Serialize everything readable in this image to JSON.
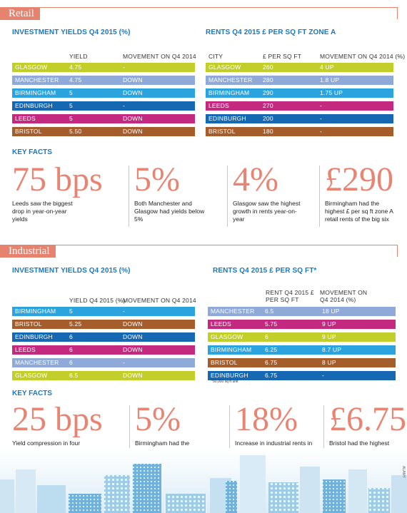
{
  "retail": {
    "section_label": "Retail",
    "yields": {
      "title": "INVESTMENT YIELDS Q4 2015 (%)",
      "headers": [
        "YIELD",
        "MOVEMENT ON Q4 2014"
      ],
      "rows": [
        {
          "city": "GLASGOW",
          "yield": "4.75",
          "movement": "-",
          "color": "#c2cf2b"
        },
        {
          "city": "MANCHESTER",
          "yield": "4.75",
          "movement": "DOWN",
          "color": "#8fa9d8"
        },
        {
          "city": "BIRMINGHAM",
          "yield": "5",
          "movement": "DOWN",
          "color": "#2aa3de"
        },
        {
          "city": "EDINBURGH",
          "yield": "5",
          "movement": "-",
          "color": "#1668b3"
        },
        {
          "city": "LEEDS",
          "yield": "5",
          "movement": "DOWN",
          "color": "#c32a7f"
        },
        {
          "city": "BRISTOL",
          "yield": "5.50",
          "movement": "DOWN",
          "color": "#a55d2c"
        }
      ]
    },
    "rents": {
      "title": "RENTS Q4 2015 £ PER SQ FT ZONE A",
      "headers": [
        "CITY",
        "£ PER SQ FT",
        "MOVEMENT ON Q4 2014 (%)"
      ],
      "rows": [
        {
          "city": "GLASGOW",
          "rent": "260",
          "movement": "4 UP",
          "color": "#c2cf2b"
        },
        {
          "city": "MANCHESTER",
          "rent": "280",
          "movement": "1.8 UP",
          "color": "#8fa9d8"
        },
        {
          "city": "BIRMINGHAM",
          "rent": "290",
          "movement": "1.75 UP",
          "color": "#2aa3de"
        },
        {
          "city": "LEEDS",
          "rent": "270",
          "movement": "-",
          "color": "#c32a7f"
        },
        {
          "city": "EDINBURGH",
          "rent": "200",
          "movement": "-",
          "color": "#1668b3"
        },
        {
          "city": "BRISTOL",
          "rent": "180",
          "movement": "-",
          "color": "#a55d2c"
        }
      ]
    },
    "key_facts_title": "KEY FACTS",
    "facts": [
      {
        "big": "75 bps",
        "text": "Leeds saw the biggest drop in year-on-year yields"
      },
      {
        "big": "5%",
        "text": "Both Manchester and Glasgow had yields below 5%"
      },
      {
        "big": "4%",
        "text": "Glasgow saw the highest growth in rents year-on-year"
      },
      {
        "big": "£290",
        "text": "Birmingham had the highest £ per sq ft zone A retail rents of the big six"
      }
    ]
  },
  "industrial": {
    "section_label": "Industrial",
    "yields": {
      "title": "INVESTMENT YIELDS Q4 2015 (%)",
      "headers": [
        "YIELD Q4 2015 (%)",
        "MOVEMENT ON Q4 2014"
      ],
      "rows": [
        {
          "city": "BIRMINGHAM",
          "yield": "5",
          "movement": "-",
          "color": "#2aa3de"
        },
        {
          "city": "BRISTOL",
          "yield": "5.25",
          "movement": "DOWN",
          "color": "#a55d2c"
        },
        {
          "city": "EDINBURGH",
          "yield": "6",
          "movement": "DOWN",
          "color": "#1668b3"
        },
        {
          "city": "LEEDS",
          "yield": "6",
          "movement": "DOWN",
          "color": "#c32a7f"
        },
        {
          "city": "MANCHESTER",
          "yield": "6",
          "movement": "-",
          "color": "#8fa9d8"
        },
        {
          "city": "GLASGOW",
          "yield": "6.5",
          "movement": "DOWN",
          "color": "#c2cf2b"
        }
      ]
    },
    "rents": {
      "title": "RENTS Q4 2015 £ PER SQ FT*",
      "headers": [
        "RENT Q4 2015 £ PER SQ FT",
        "MOVEMENT ON Q4 2014 (%)"
      ],
      "rows": [
        {
          "city": "MANCHESTER",
          "rent": "6.5",
          "movement": "18 UP",
          "color": "#8fa9d8"
        },
        {
          "city": "LEEDS",
          "rent": "5.75",
          "movement": "9 UP",
          "color": "#c32a7f"
        },
        {
          "city": "GLASGOW",
          "rent": "6",
          "movement": "9 UP",
          "color": "#c2cf2b"
        },
        {
          "city": "BIRMINGHAM",
          "rent": "6.25",
          "movement": "8.7 UP",
          "color": "#2aa3de"
        },
        {
          "city": "BRISTOL",
          "rent": "6.75",
          "movement": "8 UP",
          "color": "#a55d2c"
        },
        {
          "city": "EDINBURGH",
          "rent": "6.75",
          "movement": "-",
          "color": "#1668b3"
        }
      ],
      "footnote": "*50,000 sq ft unit"
    },
    "key_facts_title": "KEY FACTS",
    "facts": [
      {
        "big": "25 bps",
        "text": "Yield compression in four of the big six"
      },
      {
        "big": "5%",
        "text": "Birmingham had the lowest yield"
      },
      {
        "big": "18%",
        "text": "Increase in industrial rents in Manchester year-on-year – the greatest rise"
      },
      {
        "big": "£6.75",
        "text": "Bristol had the highest industrial rents (£ per sq ft)"
      }
    ]
  },
  "credit": "ALAMY"
}
